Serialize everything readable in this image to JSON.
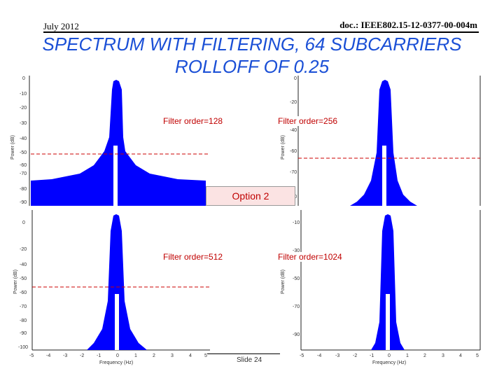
{
  "header": {
    "date": "July 2012",
    "doc": "doc.: IEEE802.15-12-0377-00-004m"
  },
  "title": {
    "line1": "SPECTRUM WITH FILTERING, 64 SUBCARRIERS",
    "line2": "ROLLOFF OF 0.25"
  },
  "plots": {
    "p1": {
      "label": "Filter order=128"
    },
    "p2": {
      "label": "Filter order=256"
    },
    "p3": {
      "label": "Filter order=512"
    },
    "p4": {
      "label": "Filter order=1024"
    }
  },
  "option_label": "Option 2",
  "slide": "Slide 24",
  "colors": {
    "title": "#1a4fd6",
    "trace": "#0000ff",
    "threshold": "#cc0000",
    "label": "#c00000"
  }
}
